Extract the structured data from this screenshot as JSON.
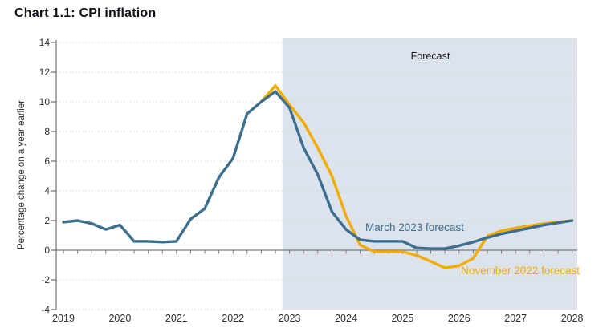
{
  "page": {
    "title": "Chart 1.1: CPI inflation"
  },
  "chart_data": {
    "type": "line",
    "title": "Chart 1.1: CPI inflation",
    "xlabel": "",
    "ylabel": "Percentage change on a year earlier",
    "ylim": [
      -4,
      14
    ],
    "ytick_step": 2,
    "ytick_labels": [
      "14",
      "12",
      "10",
      "8",
      "6",
      "4",
      "2",
      "0",
      "-2",
      "-4"
    ],
    "x_tick_labels": [
      "2019",
      "2020",
      "2021",
      "2022",
      "2023",
      "2024",
      "2025",
      "2026",
      "2027",
      "2028"
    ],
    "x_unit": "quarterly",
    "x_start": "2019Q1",
    "x_end": "2028Q1",
    "grid": "horizontal-dotted",
    "legend_position": "inline-annotations",
    "forecast_region": {
      "label": "Forecast",
      "start": "2023Q1",
      "end": "2028Q1",
      "shade_color": "#DCE3ED"
    },
    "series": [
      {
        "name": "November 2022 forecast",
        "color": "#F2AC00",
        "start": "2022Q3",
        "values": [
          10.0,
          11.1,
          9.8,
          8.6,
          6.9,
          5.0,
          2.3,
          0.35,
          -0.1,
          -0.1,
          -0.1,
          -0.35,
          -0.75,
          -1.2,
          -1.05,
          -0.55,
          0.95,
          1.3,
          1.5,
          1.65,
          1.8,
          1.9,
          2.0
        ]
      },
      {
        "name": "March 2023 forecast",
        "color": "#3C6E8E",
        "start": "2019Q1",
        "values": [
          1.9,
          2.0,
          1.8,
          1.4,
          1.7,
          0.6,
          0.6,
          0.55,
          0.6,
          2.1,
          2.8,
          4.9,
          6.2,
          9.2,
          10.0,
          10.7,
          9.6,
          6.9,
          5.1,
          2.6,
          1.4,
          0.7,
          0.6,
          0.6,
          0.6,
          0.15,
          0.1,
          0.1,
          0.3,
          0.55,
          0.85,
          1.1,
          1.3,
          1.5,
          1.7,
          1.85,
          2.0
        ]
      }
    ],
    "annotations": [
      {
        "text": "Forecast"
      },
      {
        "text": "March 2023 forecast"
      },
      {
        "text": "November 2022 forecast"
      }
    ],
    "axis_color": "#7A7A7A",
    "grid_color": "#D6D6D6",
    "tick_label_color": "#2E2E2E"
  }
}
